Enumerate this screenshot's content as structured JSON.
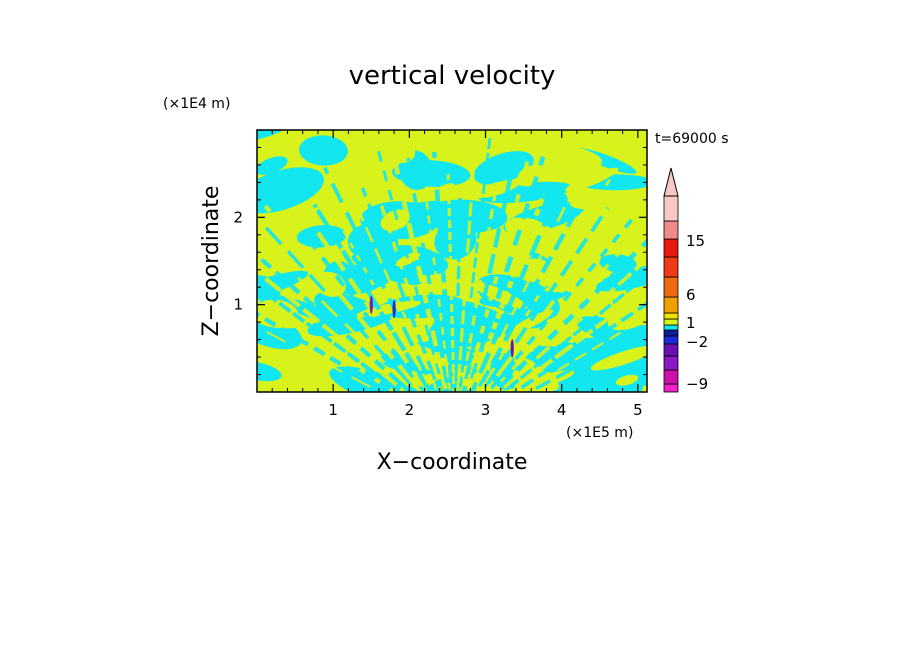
{
  "chart_data": {
    "type": "heatmap",
    "title": "vertical velocity",
    "xlabel": "X−coordinate",
    "ylabel": "Z−coordinate",
    "x_scale_label": "(×1E5 m)",
    "y_scale_label": "(×1E4 m)",
    "time_label": "t=69000 s",
    "xlim": [
      0,
      5.12
    ],
    "ylim": [
      0,
      3.0
    ],
    "x_ticks": [
      1,
      2,
      3,
      4,
      5
    ],
    "x_tick_labels": [
      "1",
      "2",
      "3",
      "4",
      "5"
    ],
    "y_ticks": [
      1,
      2
    ],
    "y_tick_labels": [
      "1",
      "2"
    ],
    "field": {
      "dominant_levels": [
        "cyan",
        "yellow"
      ],
      "colors": {
        "positive_small": "#d8f21c",
        "negative_small": "#12e6ee"
      },
      "description_pattern": "banded alternating up/down motion, fan-shaped wave rays spreading upward from x≈2.6"
    },
    "colorbar": {
      "levels": [
        {
          "color": "#ee22c8"
        },
        {
          "color": "#cc11aa"
        },
        {
          "color": "#8a18c4"
        },
        {
          "color": "#6a10b0"
        },
        {
          "color": "#1a2ad6"
        },
        {
          "color": "#0d1a9a"
        },
        {
          "color": "#12e6ee"
        },
        {
          "color": "#d8f21c"
        },
        {
          "color": "#f2e400"
        },
        {
          "color": "#f0a000"
        },
        {
          "color": "#f06a10"
        },
        {
          "color": "#f03a18"
        },
        {
          "color": "#e81a10"
        },
        {
          "color": "#f08a88"
        },
        {
          "color": "#f8c8c4"
        }
      ],
      "labels": [
        {
          "text": "15",
          "value": 15
        },
        {
          "text": "6",
          "value": 6
        },
        {
          "text": "1",
          "value": 1
        },
        {
          "text": "−2",
          "value": -2
        },
        {
          "text": "−9",
          "value": -9
        }
      ]
    }
  }
}
